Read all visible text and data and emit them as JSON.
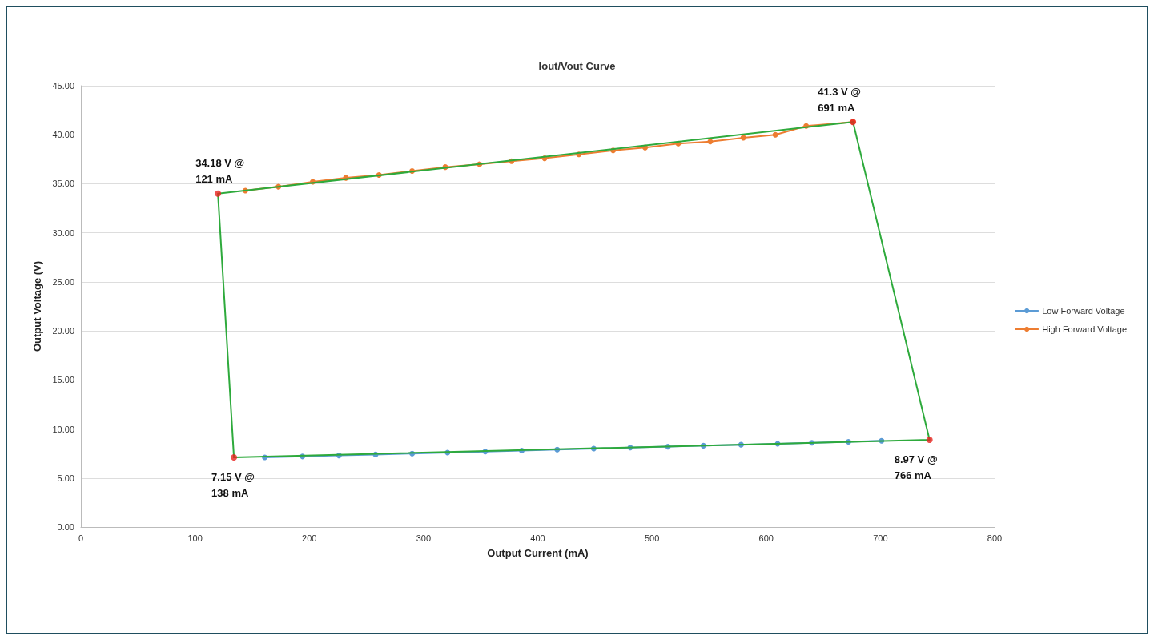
{
  "chart_data": {
    "type": "line",
    "title": "Iout/Vout Curve",
    "xlabel": "Output Current (mA)",
    "ylabel": "Output Voltage (V)",
    "xlim": [
      0,
      800
    ],
    "xticks": [
      0,
      100,
      200,
      300,
      400,
      500,
      600,
      700,
      800
    ],
    "ylim": [
      0,
      45
    ],
    "yticks": [
      {
        "value": 0,
        "label": "0.00"
      },
      {
        "value": 5,
        "label": "5.00"
      },
      {
        "value": 10,
        "label": "10.00"
      },
      {
        "value": 15,
        "label": "15.00"
      },
      {
        "value": 20,
        "label": "20.00"
      },
      {
        "value": 25,
        "label": "25.00"
      },
      {
        "value": 30,
        "label": "30.00"
      },
      {
        "value": 35,
        "label": "35.00"
      },
      {
        "value": 40,
        "label": "40.00"
      },
      {
        "value": 45,
        "label": "45.00"
      }
    ],
    "grid": "y",
    "legend": "right",
    "marker": "circle",
    "line_style": "solid",
    "series": [
      {
        "name": "Low Forward Voltage",
        "color": "#5b9bd5",
        "x": [
          161,
          194,
          226,
          258,
          290,
          321,
          354,
          386,
          417,
          449,
          481,
          514,
          545,
          578,
          610,
          640,
          672,
          701
        ],
        "values": [
          7.1,
          7.2,
          7.3,
          7.4,
          7.5,
          7.6,
          7.7,
          7.8,
          7.9,
          8.0,
          8.1,
          8.2,
          8.3,
          8.4,
          8.5,
          8.6,
          8.7,
          8.8
        ]
      },
      {
        "name": "High Forward Voltage",
        "color": "#ed7d31",
        "x": [
          144,
          173,
          203,
          232,
          261,
          290,
          319,
          349,
          377,
          406,
          436,
          466,
          494,
          523,
          551,
          580,
          608,
          635,
          676
        ],
        "values": [
          34.3,
          34.7,
          35.2,
          35.6,
          35.9,
          36.3,
          36.7,
          37.0,
          37.3,
          37.6,
          38.0,
          38.4,
          38.7,
          39.1,
          39.3,
          39.7,
          40.0,
          40.9,
          41.3
        ]
      },
      {
        "color": "#2eaa3c",
        "marker": "none",
        "x": [
          134,
          120,
          676
        ],
        "values": [
          7.1,
          34.0,
          41.3
        ]
      },
      {
        "color": "#2eaa3c",
        "marker": "none",
        "x": [
          134,
          743,
          676
        ],
        "values": [
          7.1,
          8.9,
          41.3
        ]
      },
      {
        "type": "scatter",
        "color": "#e8231f",
        "x": [
          120,
          676,
          743,
          134
        ],
        "values": [
          34.0,
          41.3,
          8.9,
          7.1
        ]
      }
    ],
    "annotations": [
      {
        "text": "34.18 V @\n121 mA",
        "x": 120,
        "y": 34.0
      },
      {
        "text": "41.3 V @\n691 mA",
        "x": 676,
        "y": 41.3
      },
      {
        "text": "8.97 V @\n766 mA",
        "x": 743,
        "y": 8.9
      },
      {
        "text": "7.15 V @\n138 mA",
        "x": 134,
        "y": 7.1
      }
    ]
  }
}
